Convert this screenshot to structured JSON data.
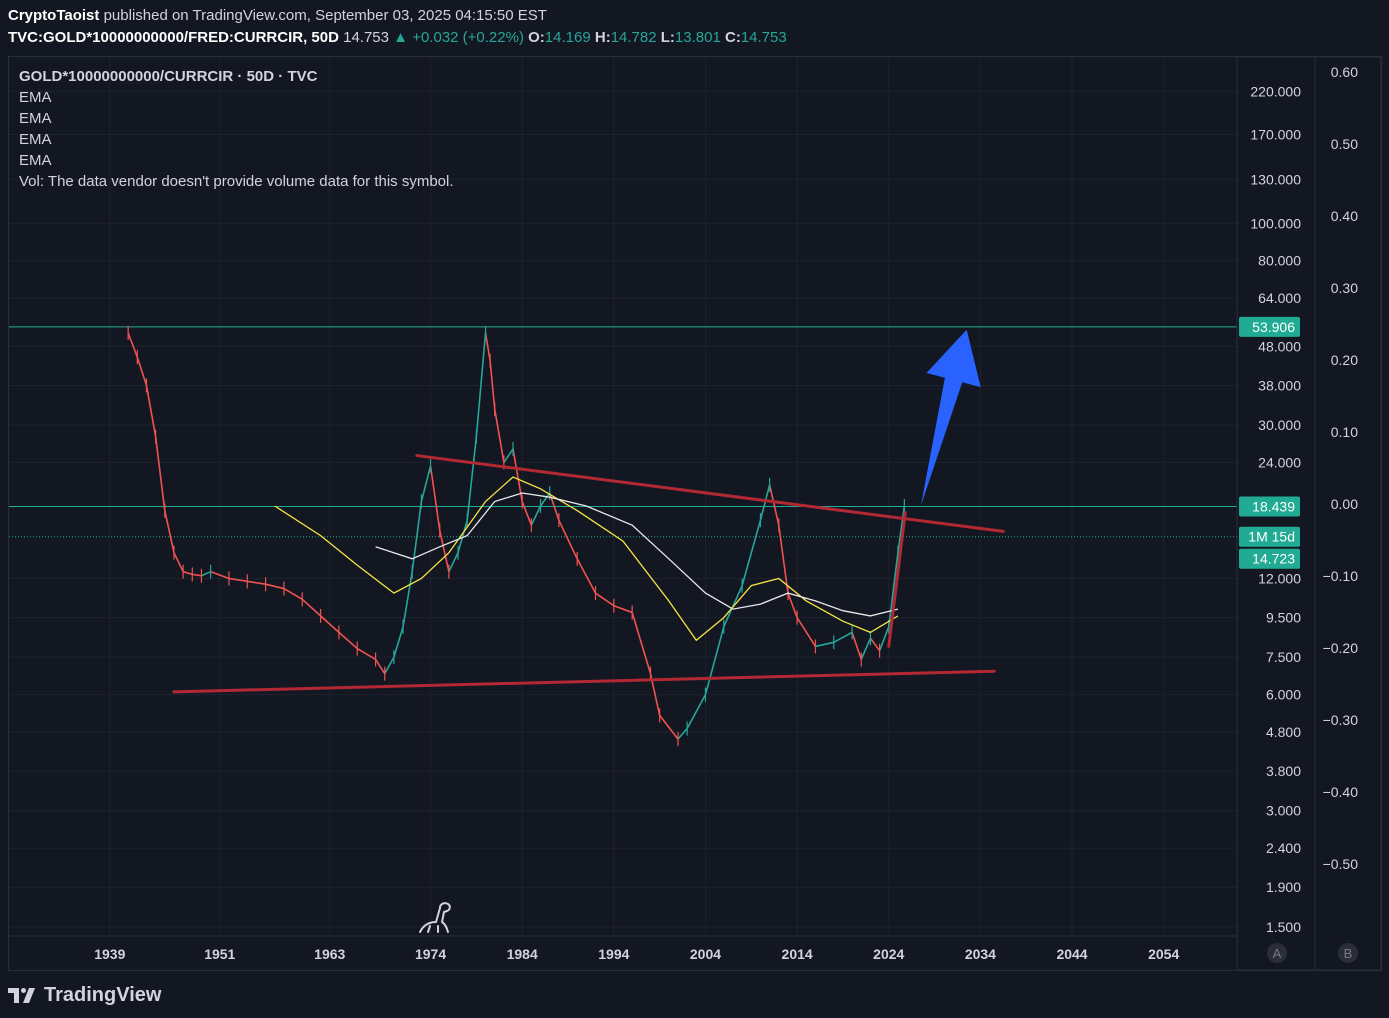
{
  "header": {
    "author": "CryptoTaoist",
    "published_text": "published on TradingView.com, September 03, 2025 04:15:50 EST",
    "symbol": "TVC:GOLD*10000000000/FRED:CURRCIR, 50D",
    "last": "14.753",
    "change": "+0.032 (+0.22%)",
    "o_label": "O:",
    "o": "14.169",
    "h_label": "H:",
    "h": "14.782",
    "l_label": "L:",
    "l": "13.801",
    "c_label": "C:",
    "c": "14.753"
  },
  "legend": {
    "title": "GOLD*10000000000/CURRCIR · 50D · TVC",
    "indicators": [
      "EMA",
      "EMA",
      "EMA",
      "EMA"
    ],
    "vol_note": "Vol: The data vendor doesn't provide volume data for this symbol."
  },
  "footer": {
    "brand": "TradingView"
  },
  "colors": {
    "background": "#131722",
    "grid": "#1e222d",
    "up": "#26a69a",
    "down": "#ef5350",
    "ema_yellow": "#f5e642",
    "ema_white": "#e8e8e8",
    "trendline": "#b22833",
    "arrow": "#2962ff",
    "hline": "#22ab94"
  },
  "scale_buttons": {
    "a": "A",
    "b": "B"
  },
  "chart_data": {
    "type": "line",
    "log_scale": true,
    "xlim": [
      1928,
      2062
    ],
    "ylim": [
      1.42,
      270
    ],
    "x_ticks": [
      1939,
      1951,
      1963,
      1974,
      1984,
      1994,
      2004,
      2014,
      2024,
      2034,
      2044,
      2054
    ],
    "y_ticks": [
      1.5,
      1.9,
      2.4,
      3.0,
      3.8,
      4.8,
      6.0,
      7.5,
      9.5,
      12.0,
      24.0,
      30.0,
      38.0,
      48.0,
      64.0,
      80.0,
      100.0,
      130.0,
      170.0,
      220.0
    ],
    "y_tick_labels": [
      "1.500",
      "1.900",
      "2.400",
      "3.000",
      "3.800",
      "4.800",
      "6.000",
      "7.500",
      "9.500",
      "12.000",
      "24.000",
      "30.000",
      "38.000",
      "48.000",
      "64.000",
      "80.000",
      "100.000",
      "130.000",
      "170.000",
      "220.000"
    ],
    "y2_ticks": [
      0.6,
      0.5,
      0.4,
      0.3,
      0.2,
      0.1,
      0.0,
      -0.1,
      -0.2,
      -0.3,
      -0.4,
      -0.5
    ],
    "y2_tick_labels": [
      "0.60",
      "0.50",
      "0.40",
      "0.30",
      "0.20",
      "0.10",
      "0.00",
      "−0.10",
      "−0.20",
      "−0.30",
      "−0.40",
      "−0.50"
    ],
    "price_labels": [
      {
        "text": "53.906",
        "value": 53.906
      },
      {
        "text": "18.439",
        "value": 18.439
      },
      {
        "text": "1M 15d",
        "value": 15.4
      },
      {
        "text": "14.723",
        "value": 14.723
      }
    ],
    "horizontal_lines": [
      {
        "value": 53.906,
        "style": "solid"
      },
      {
        "value": 18.439,
        "style": "solid"
      },
      {
        "value": 15.4,
        "style": "dotted"
      }
    ],
    "series": [
      {
        "role": "price",
        "x": [
          1941,
          1942,
          1943,
          1944,
          1945,
          1946,
          1947,
          1948,
          1949,
          1950,
          1952,
          1954,
          1956,
          1958,
          1960,
          1962,
          1964,
          1966,
          1968,
          1969,
          1970,
          1971,
          1972,
          1973,
          1974,
          1975,
          1976,
          1977,
          1978,
          1979,
          1980,
          1980.5,
          1981,
          1982,
          1983,
          1984,
          1985,
          1986,
          1987,
          1988,
          1990,
          1992,
          1994,
          1996,
          1998,
          1999,
          2001,
          2002,
          2004,
          2006,
          2008,
          2010,
          2011,
          2012,
          2013,
          2014,
          2016,
          2018,
          2020,
          2021,
          2022,
          2023,
          2024,
          2025,
          2025.7
        ],
        "y": [
          52,
          45,
          38,
          28,
          18,
          14,
          12.5,
          12.3,
          12.2,
          12.5,
          12.0,
          11.8,
          11.6,
          11.3,
          10.6,
          9.6,
          8.7,
          7.9,
          7.4,
          6.8,
          7.5,
          9.0,
          12.5,
          19.0,
          23.5,
          16.0,
          12.5,
          14.0,
          17.0,
          28.0,
          52.0,
          44.0,
          33.0,
          24.0,
          26.0,
          19.0,
          16.5,
          18.5,
          20.0,
          17.0,
          13.5,
          11.0,
          10.2,
          9.8,
          6.8,
          5.3,
          4.6,
          4.9,
          6.0,
          9.0,
          11.5,
          17.0,
          21.0,
          16.5,
          11.0,
          9.5,
          8.0,
          8.2,
          8.7,
          7.4,
          8.4,
          7.8,
          9.0,
          14.0,
          18.5
        ]
      },
      {
        "role": "ema-yellow",
        "x": [
          1957,
          1962,
          1966,
          1970,
          1973,
          1976,
          1980,
          1983,
          1986,
          1990,
          1995,
          2000,
          2003,
          2006,
          2009,
          2012,
          2015,
          2019,
          2022,
          2025
        ],
        "y": [
          18.5,
          15.5,
          13.0,
          11.0,
          12.0,
          14.0,
          19.0,
          22.0,
          20.5,
          18.0,
          15.0,
          10.5,
          8.3,
          9.5,
          11.5,
          12.0,
          10.5,
          9.3,
          8.7,
          9.6
        ]
      },
      {
        "role": "ema-white",
        "x": [
          1968,
          1972,
          1975,
          1978,
          1981,
          1984,
          1987,
          1991,
          1996,
          2000,
          2004,
          2007,
          2010,
          2013,
          2016,
          2019,
          2022,
          2025
        ],
        "y": [
          14.5,
          13.5,
          14.5,
          15.5,
          19.0,
          20.0,
          19.5,
          18.5,
          16.5,
          13.5,
          11.0,
          10.0,
          10.3,
          11.0,
          10.5,
          9.9,
          9.6,
          10.0
        ]
      }
    ],
    "trendlines": [
      {
        "x1": 1972.5,
        "y1": 25.0,
        "x2": 2036.5,
        "y2": 15.9
      },
      {
        "x1": 1946.0,
        "y1": 6.1,
        "x2": 2035.5,
        "y2": 6.9
      },
      {
        "x1": 2024.0,
        "y1": 8.0,
        "x2": 2025.8,
        "y2": 17.8
      }
    ],
    "arrow": {
      "from_x": 2027.5,
      "from_y": 18.5,
      "to_x": 2032.5,
      "to_y": 53.0
    }
  }
}
